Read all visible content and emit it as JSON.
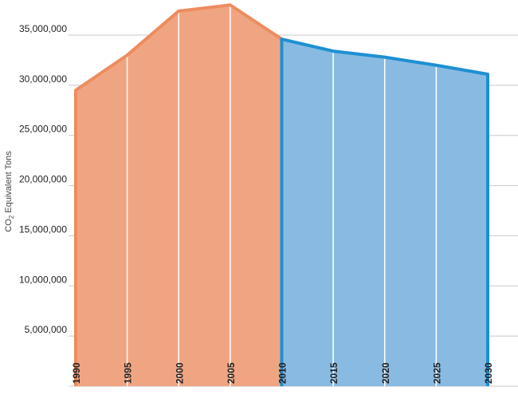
{
  "chart_data": {
    "type": "area",
    "ylabel": "CO2 Equivalent Tons",
    "ylabel_main": "CO",
    "ylabel_sub": "2",
    "ylabel_rest": " Equivalent Tons",
    "ylim": [
      0,
      35000000
    ],
    "y_ticks": [
      "5,000,000",
      "10,000,000",
      "15,000,000",
      "20,000,000",
      "25,000,000",
      "30,000,000",
      "35,000,000"
    ],
    "y_tick_values": [
      5000000,
      10000000,
      15000000,
      20000000,
      25000000,
      30000000,
      35000000
    ],
    "x_ticks": [
      "1990",
      "1995",
      "2000",
      "2005",
      "2010",
      "2015",
      "2020",
      "2025",
      "2030"
    ],
    "grid": true,
    "series": [
      {
        "color": "#f0a582",
        "stroke": "#ec8c5f",
        "x": [
          1990,
          1995,
          2000,
          2005,
          2010
        ],
        "values": [
          29500000,
          33000000,
          37400000,
          38000000,
          34600000
        ]
      },
      {
        "color": "#89bbe2",
        "stroke": "#1e90d2",
        "x": [
          2010,
          2015,
          2020,
          2025,
          2030
        ],
        "values": [
          34600000,
          33400000,
          32800000,
          32000000,
          31100000
        ]
      }
    ]
  }
}
